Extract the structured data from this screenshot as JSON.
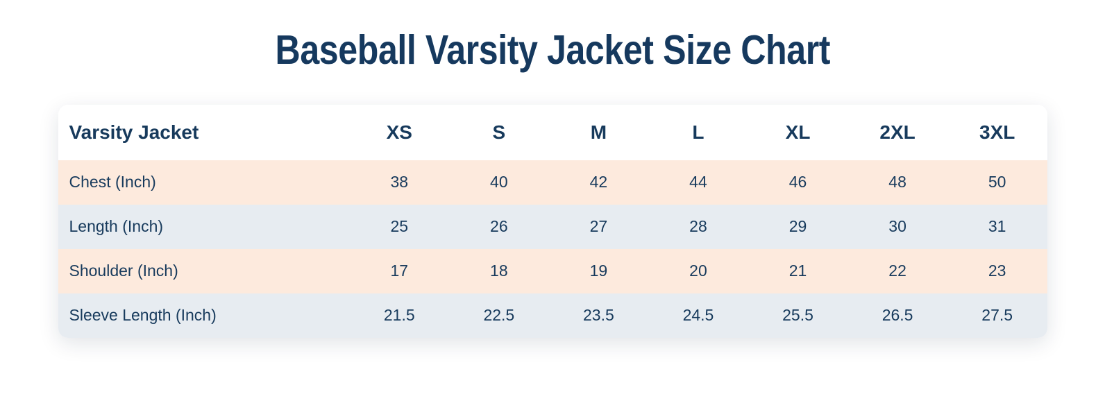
{
  "title": {
    "text": "Baseball Varsity Jacket Size Chart"
  },
  "colors": {
    "title_text": "#16395e",
    "table_text": "#173a5c",
    "row_peach": "#fdeadd",
    "row_bluegray": "#e7ecf1",
    "card_background": "#ffffff",
    "page_background": "#ffffff"
  },
  "table": {
    "corner_header": "Varsity Jacket",
    "size_columns": [
      "XS",
      "S",
      "M",
      "L",
      "XL",
      "2XL",
      "3XL"
    ],
    "rows": [
      {
        "label": "Chest (Inch)",
        "values": [
          "38",
          "40",
          "42",
          "44",
          "46",
          "48",
          "50"
        ]
      },
      {
        "label": "Length (Inch)",
        "values": [
          "25",
          "26",
          "27",
          "28",
          "29",
          "30",
          "31"
        ]
      },
      {
        "label": "Shoulder (Inch)",
        "values": [
          "17",
          "18",
          "19",
          "20",
          "21",
          "22",
          "23"
        ]
      },
      {
        "label": "Sleeve Length (Inch)",
        "values": [
          "21.5",
          "22.5",
          "23.5",
          "24.5",
          "25.5",
          "26.5",
          "27.5"
        ]
      }
    ]
  },
  "chart_data": {
    "type": "table",
    "title": "Baseball Varsity Jacket Size Chart",
    "columns": [
      "Varsity Jacket",
      "XS",
      "S",
      "M",
      "L",
      "XL",
      "2XL",
      "3XL"
    ],
    "rows": [
      [
        "Chest (Inch)",
        38,
        40,
        42,
        44,
        46,
        48,
        50
      ],
      [
        "Length (Inch)",
        25,
        26,
        27,
        28,
        29,
        30,
        31
      ],
      [
        "Shoulder (Inch)",
        17,
        18,
        19,
        20,
        21,
        22,
        23
      ],
      [
        "Sleeve Length (Inch)",
        21.5,
        22.5,
        23.5,
        24.5,
        25.5,
        26.5,
        27.5
      ]
    ]
  }
}
